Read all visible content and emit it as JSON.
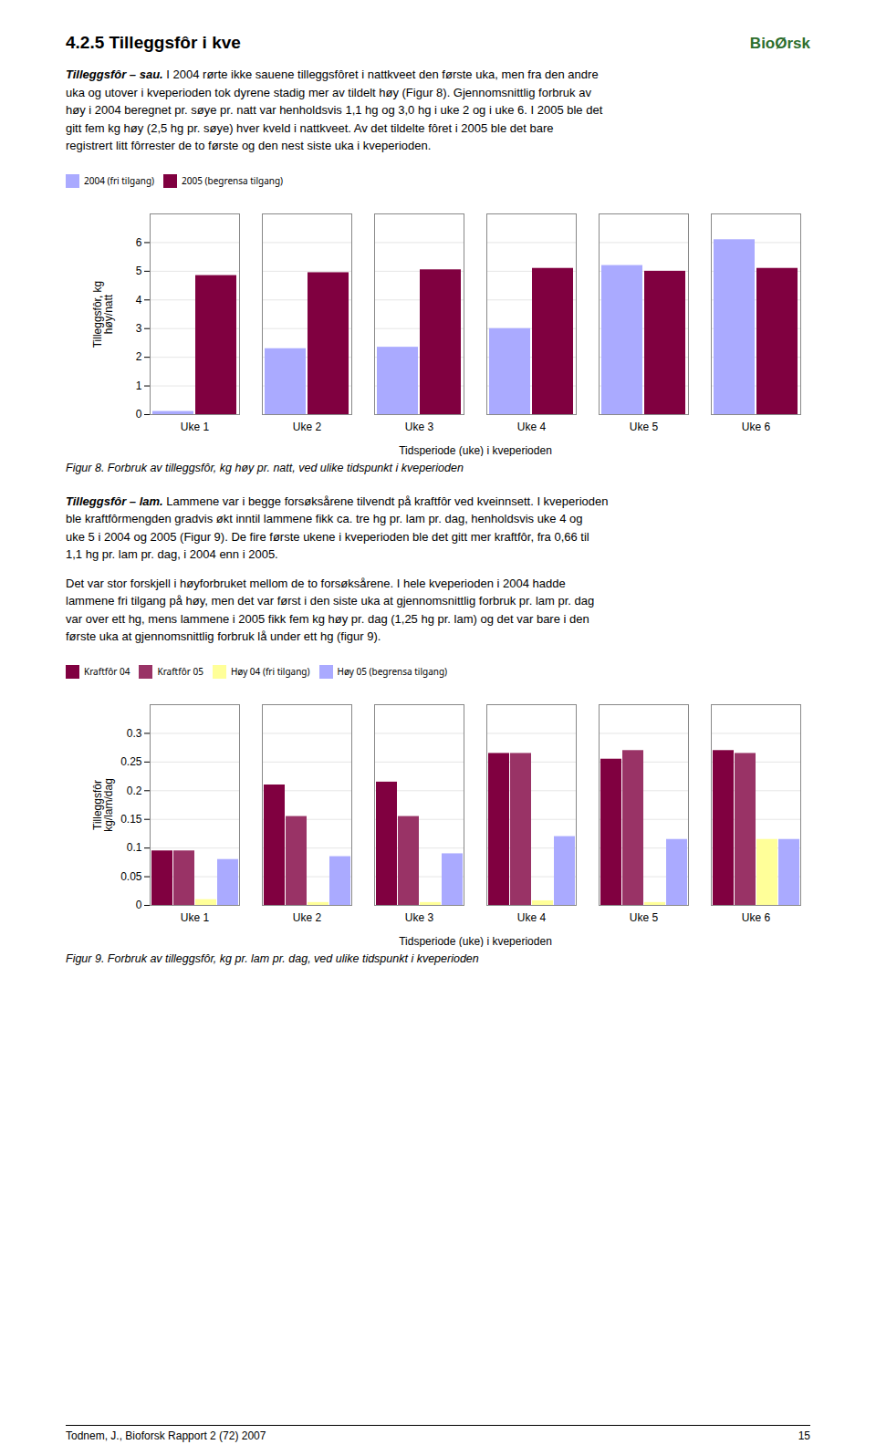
{
  "chart_data": [
    {
      "type": "bar",
      "annotations": [
        "4.2.5 Tilleggsfôr i kve",
        "BioØrsk",
        "Tilleggsfôr – sau.",
        " I 2004 rørte ikke sauene tilleggsfôret i nattkveet den første uka, men fra den andre\nuka og utover i kveperioden tok dyrene stadig mer av tildelt høy (Figur 8). Gjennomsnittlig forbruk av\nhøy i 2004 beregnet pr. søye pr. natt var henholdsvis 1,1 hg og 3,0 hg i uke 2 og i uke 6. I 2005 ble det\ngitt fem kg høy (2,5 hg pr. søye) hver kveld i nattkveet. Av det tildelte fôret i 2005 ble det bare\nregistrert litt fôrrester de to første og den nest siste uka i kveperioden.",
        "Figur 8.  Forbruk av tilleggsfôr, kg høy pr. natt, ved ulike tidspunkt i kveperioden"
      ],
      "categories": [
        "Uke 1",
        "Uke 2",
        "Uke 3",
        "Uke 4",
        "Uke 5",
        "Uke 6"
      ],
      "series": [
        {
          "name": "2004 (fri tilgang)",
          "color": "#aaaaff",
          "values": [
            0.11,
            2.3,
            2.35,
            3.0,
            5.2,
            6.1
          ]
        },
        {
          "name": "2005 (begrensa tilgang)",
          "color": "#800040",
          "values": [
            4.85,
            4.95,
            5.05,
            5.1,
            5.0,
            5.1
          ]
        }
      ],
      "xlabel": "Tidsperiode (uke) i kveperioden",
      "ylabel": "Tilleggsfôr, kg\nhøy/natt",
      "ylim": [
        0,
        7
      ],
      "yticks": [
        0,
        1,
        2,
        3,
        4,
        5,
        6
      ],
      "grid": true
    },
    {
      "type": "bar",
      "annotations": [
        "Tilleggsfôr – lam.",
        " Lammene var i begge forsøksårene tilvendt på kraftfôr ved kveinnsett. I kveperioden\nble kraftfôrmengden gradvis økt inntil lammene fikk ca. tre hg pr. lam pr. dag, henholdsvis uke 4 og\nuke 5 i 2004 og 2005 (Figur 9). De fire første ukene i kveperioden ble det gitt mer kraftfôr, fra 0,66 til\n1,1 hg pr. lam pr. dag, i 2004 enn i 2005.",
        "Det var stor forskjell i høyforbruket mellom de to forsøksårene. I hele kveperioden i 2004 hadde\nlammene fri tilgang på høy, men det var først i den siste uka at gjennomsnittlig forbruk pr. lam pr. dag\nvar over ett hg, mens lammene i 2005 fikk fem kg høy pr. dag (1,25 hg pr. lam) og det var bare i den\nførste uka at gjennomsnittlig forbruk lå under ett hg (figur 9).",
        "Figur 9.  Forbruk av tilleggsfôr, kg pr. lam pr. dag, ved ulike tidspunkt i kveperioden",
        "Todnem, J., Bioforsk Rapport 2 (72) 2007",
        "15"
      ],
      "categories": [
        "Uke 1",
        "Uke 2",
        "Uke 3",
        "Uke 4",
        "Uke 5",
        "Uke 6"
      ],
      "series": [
        {
          "name": "Kraftfôr 04",
          "color": "#800040",
          "values": [
            0.095,
            0.21,
            0.215,
            0.265,
            0.255,
            0.27
          ]
        },
        {
          "name": "Kraftfôr 05",
          "color": "#993366",
          "values": [
            0.095,
            0.155,
            0.155,
            0.265,
            0.27,
            0.265
          ]
        },
        {
          "name": "Høy 04 (fri tilgang)",
          "color": "#ffff99",
          "values": [
            0.01,
            0.005,
            0.005,
            0.008,
            0.005,
            0.115
          ]
        },
        {
          "name": "Høy 05 (begrensa tilgang)",
          "color": "#aaaaff",
          "values": [
            0.08,
            0.085,
            0.09,
            0.12,
            0.115,
            0.115
          ]
        }
      ],
      "xlabel": "Tidsperiode (uke) i kveperioden",
      "ylabel": "Tilleggsfôr\nkg/lam/dag",
      "ylim": [
        0,
        0.35
      ],
      "yticks": [
        0,
        0.05,
        0.1,
        0.15,
        0.2,
        0.25,
        0.3
      ],
      "grid": true
    }
  ]
}
